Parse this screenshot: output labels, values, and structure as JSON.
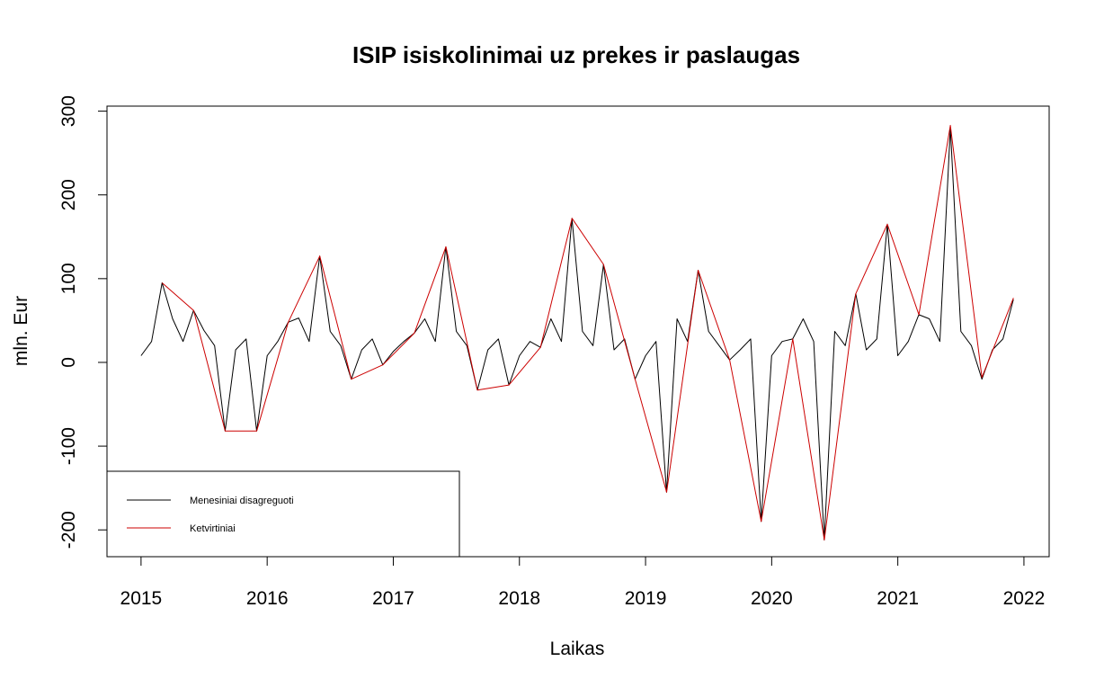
{
  "chart_data": {
    "type": "line",
    "title": "ISIP isiskolinimai uz prekes ir paslaugas",
    "xlabel": "Laikas",
    "ylabel": "mln. Eur",
    "xlim": [
      2014.73,
      2022.2
    ],
    "ylim": [
      -232,
      306
    ],
    "x_ticks": [
      2015,
      2016,
      2017,
      2018,
      2019,
      2020,
      2021,
      2022
    ],
    "x_tick_labels": [
      "2015",
      "2016",
      "2017",
      "2018",
      "2019",
      "2020",
      "2021",
      "2022"
    ],
    "y_ticks": [
      -200,
      -100,
      0,
      100,
      200,
      300
    ],
    "y_tick_labels": [
      "-200",
      "-100",
      "0",
      "100",
      "200",
      "300"
    ],
    "legend": {
      "position": "bottom-left",
      "entries": [
        {
          "label": "Menesiniai disagreguoti",
          "color": "#000000"
        },
        {
          "label": "Ketvirtiniai",
          "color": "#cc0000"
        }
      ]
    },
    "series": [
      {
        "name": "Menesiniai disagreguoti",
        "color": "#000000",
        "x_start": 2015,
        "x_step": 0.083333,
        "values": [
          8,
          25,
          95,
          52,
          25,
          62,
          38,
          20,
          -82,
          15,
          28,
          -82,
          8,
          25,
          48,
          53,
          25,
          127,
          37,
          20,
          -20,
          15,
          28,
          -3,
          13,
          25,
          35,
          52,
          25,
          138,
          37,
          20,
          -33,
          15,
          28,
          -27,
          8,
          25,
          18,
          52,
          25,
          172,
          37,
          20,
          117,
          15,
          28,
          -20,
          8,
          25,
          -155,
          52,
          25,
          110,
          37,
          20,
          3,
          15,
          28,
          -190,
          8,
          25,
          28,
          52,
          25,
          -212,
          37,
          20,
          82,
          15,
          28,
          165,
          8,
          25,
          57,
          52,
          25,
          280,
          37,
          20,
          -20,
          15,
          28,
          75
        ]
      },
      {
        "name": "Ketvirtiniai",
        "color": "#cc0000",
        "x": [
          2015.167,
          2015.417,
          2015.667,
          2015.917,
          2016.167,
          2016.417,
          2016.667,
          2016.917,
          2017.167,
          2017.417,
          2017.667,
          2017.917,
          2018.167,
          2018.417,
          2018.667,
          2018.917,
          2019.167,
          2019.417,
          2019.667,
          2019.917,
          2020.167,
          2020.417,
          2020.667,
          2020.917,
          2021.167,
          2021.417,
          2021.667,
          2021.917
        ],
        "values": [
          95,
          62,
          -82,
          -82,
          48,
          127,
          -20,
          -3,
          35,
          138,
          -33,
          -27,
          18,
          172,
          117,
          -20,
          -155,
          110,
          3,
          -190,
          28,
          -212,
          82,
          165,
          57,
          283,
          -18,
          77
        ]
      }
    ]
  }
}
